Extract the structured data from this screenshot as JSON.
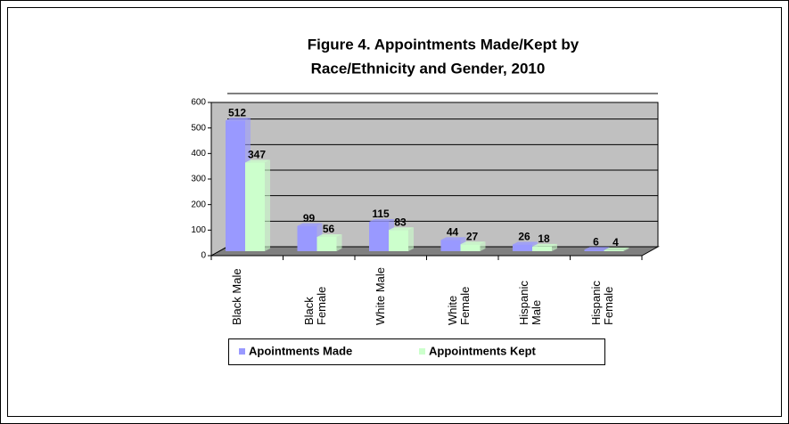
{
  "chart_data": {
    "type": "bar3d",
    "title": "Figure 4.  Appointments Made/Kept by",
    "subtitle": "Race/Ethnicity and Gender, 2010",
    "categories": [
      "Black Male",
      "Black Female",
      "White Male",
      "White Female",
      "Hispanic Male",
      "Hispanic Female"
    ],
    "series": [
      {
        "name": "Apointments Made",
        "color": "#9999ff",
        "values": [
          512,
          99,
          115,
          44,
          26,
          6
        ]
      },
      {
        "name": "Appointments Kept",
        "color": "#ccffcc",
        "values": [
          347,
          56,
          83,
          27,
          18,
          4
        ]
      }
    ],
    "ylim": [
      0,
      600
    ],
    "yticks": [
      0,
      100,
      200,
      300,
      400,
      500,
      600
    ],
    "grid": true,
    "legend": "bottom"
  }
}
